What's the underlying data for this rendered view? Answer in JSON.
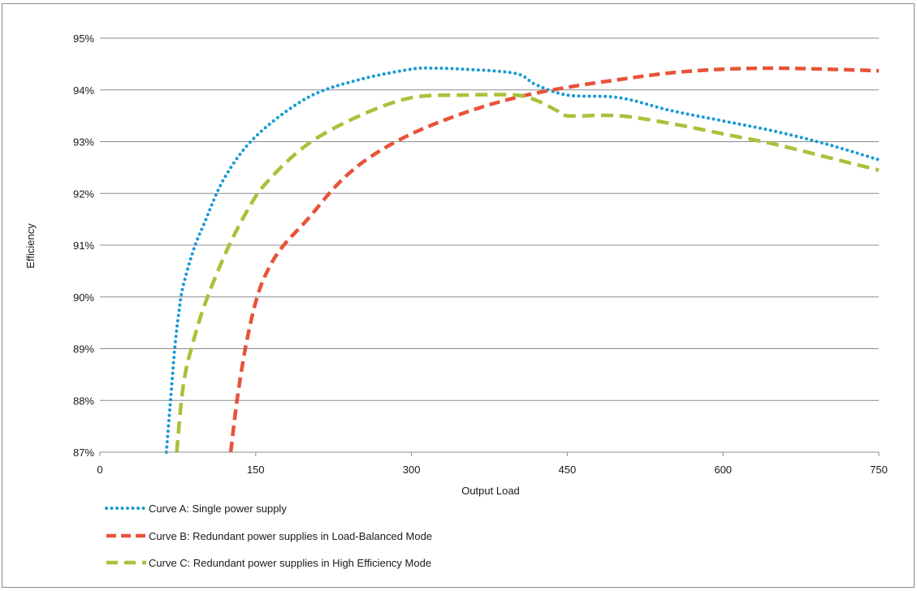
{
  "chart_data": {
    "type": "line",
    "xlabel": "Output Load",
    "ylabel": "Efficiency",
    "xlim": [
      0,
      750
    ],
    "ylim": [
      87,
      95
    ],
    "x_ticks": [
      0,
      150,
      300,
      450,
      600,
      750
    ],
    "y_ticks": [
      87,
      88,
      89,
      90,
      91,
      92,
      93,
      94,
      95
    ],
    "y_tick_labels": [
      "87%",
      "88%",
      "89%",
      "90%",
      "91%",
      "92%",
      "93%",
      "94%",
      "95%"
    ],
    "grid": "horizontal",
    "legend_position": "bottom-left",
    "series": [
      {
        "name": "Curve A: Single power supply",
        "color": "#1a9ad6",
        "style": "dotted",
        "x": [
          64,
          68,
          72,
          76,
          80,
          90,
          100,
          120,
          150,
          200,
          250,
          300,
          320,
          350,
          400,
          420,
          450,
          500,
          550,
          600,
          650,
          700,
          750
        ],
        "y": [
          87.0,
          88.0,
          89.0,
          89.7,
          90.2,
          90.9,
          91.4,
          92.3,
          93.1,
          93.85,
          94.2,
          94.4,
          94.42,
          94.4,
          94.32,
          94.1,
          93.9,
          93.85,
          93.6,
          93.4,
          93.2,
          92.95,
          92.65
        ]
      },
      {
        "name": "Curve B: Redundant power supplies in Load-Balanced Mode",
        "color": "#e8533a",
        "style": "dashed",
        "x": [
          126,
          132,
          140,
          150,
          160,
          175,
          200,
          230,
          260,
          300,
          350,
          400,
          450,
          500,
          550,
          600,
          650,
          700,
          750
        ],
        "y": [
          87.0,
          88.0,
          89.0,
          89.9,
          90.45,
          90.95,
          91.5,
          92.2,
          92.7,
          93.15,
          93.55,
          93.85,
          94.05,
          94.2,
          94.33,
          94.4,
          94.42,
          94.4,
          94.37
        ]
      },
      {
        "name": "Curve C: Redundant power supplies in High Efficiency Mode",
        "color": "#a8c23b",
        "style": "dashed",
        "x": [
          74,
          78,
          82,
          88,
          100,
          120,
          140,
          160,
          200,
          250,
          300,
          350,
          400,
          420,
          440,
          450,
          500,
          550,
          600,
          650,
          700,
          750
        ],
        "y": [
          87.0,
          87.9,
          88.5,
          89.0,
          89.8,
          90.8,
          91.6,
          92.2,
          92.95,
          93.5,
          93.85,
          93.9,
          93.9,
          93.8,
          93.6,
          93.5,
          93.5,
          93.35,
          93.15,
          92.95,
          92.7,
          92.45
        ]
      }
    ]
  }
}
